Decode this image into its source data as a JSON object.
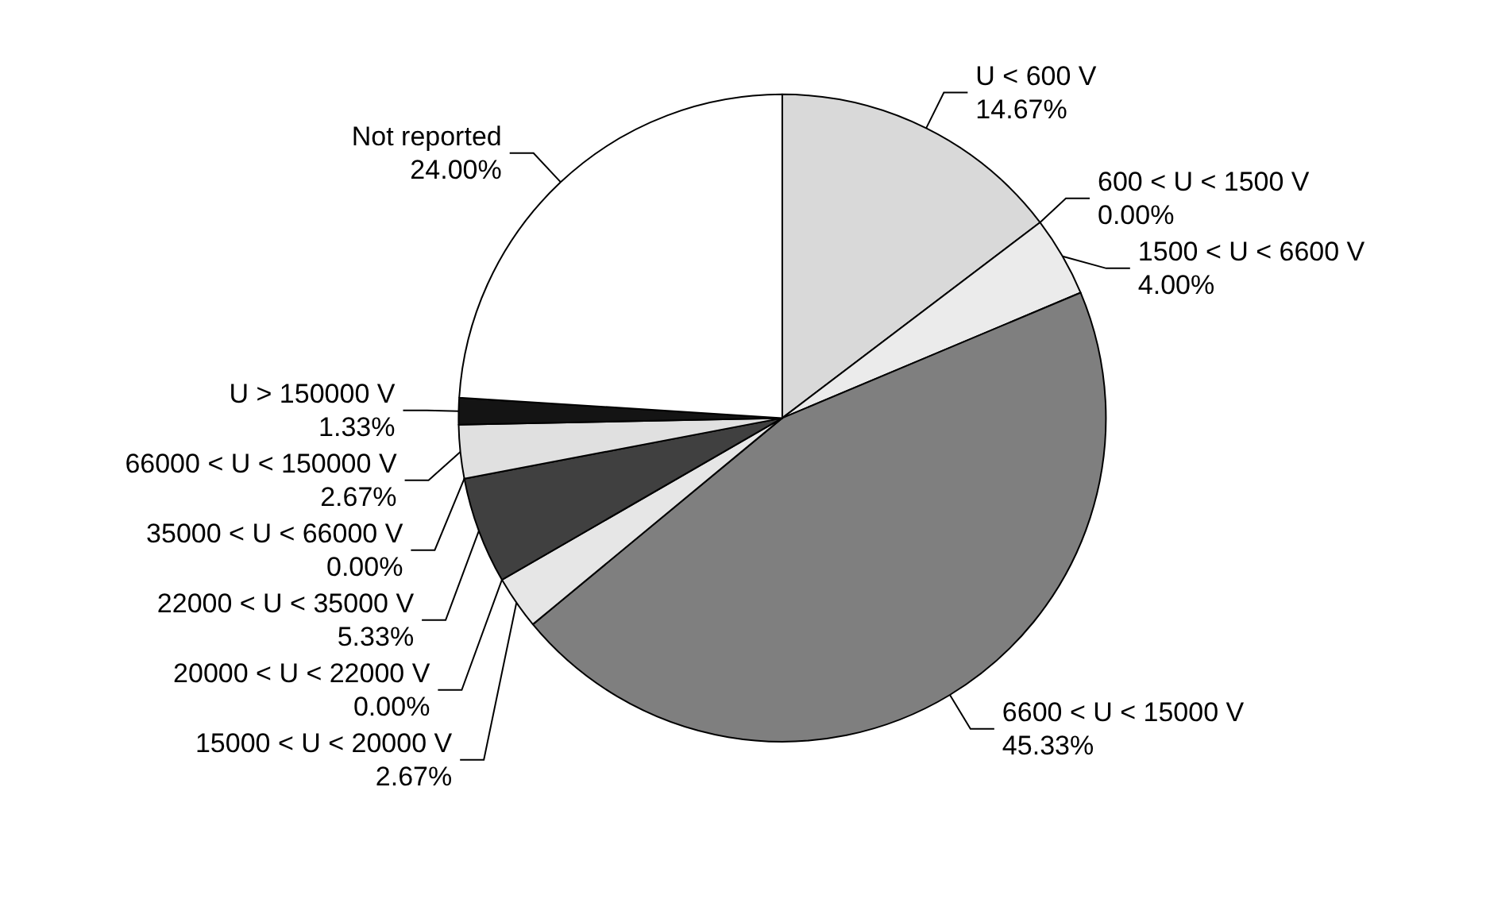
{
  "chart_data": {
    "type": "pie",
    "categories": [
      "U < 600 V",
      "600 < U < 1500 V",
      "1500 < U < 6600 V",
      "6600 < U < 15000 V",
      "15000 < U < 20000 V",
      "20000 < U < 22000 V",
      "22000 < U < 35000 V",
      "35000 < U < 66000 V",
      "66000 < U < 150000 V",
      "U > 150000 V",
      "Not reported"
    ],
    "values": [
      14.67,
      0.0,
      4.0,
      45.33,
      2.67,
      0.0,
      5.33,
      0.0,
      2.67,
      1.33,
      24.0
    ],
    "value_labels": [
      "14.67%",
      "0.00%",
      "4.00%",
      "45.33%",
      "2.67%",
      "0.00%",
      "5.33%",
      "0.00%",
      "2.67%",
      "1.33%",
      "24.00%"
    ],
    "colors": [
      "#d9d9d9",
      "#f2f2f2",
      "#ebebeb",
      "#7f7f7f",
      "#e6e6e6",
      "#f2f2f2",
      "#404040",
      "#f2f2f2",
      "#e0e0e0",
      "#141414",
      "#ffffff"
    ],
    "legend": false
  }
}
